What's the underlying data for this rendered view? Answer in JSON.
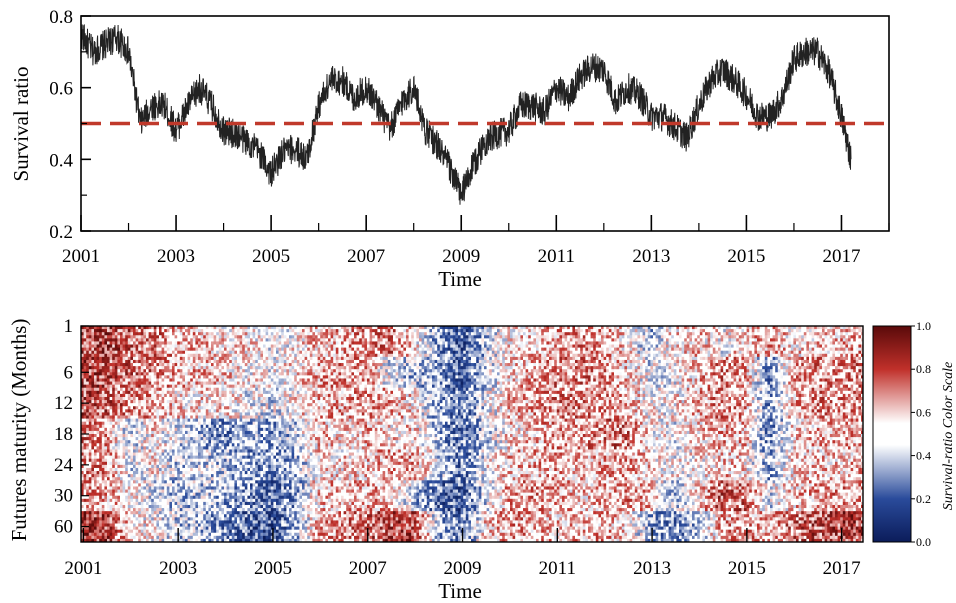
{
  "chart_data": [
    {
      "type": "line",
      "xlabel": "Time",
      "ylabel": "Survival ratio",
      "xlim": [
        2001.0,
        2018.0
      ],
      "ylim": [
        0.2,
        0.8
      ],
      "x_ticks": [
        2001,
        2003,
        2005,
        2007,
        2009,
        2011,
        2013,
        2015,
        2017
      ],
      "y_ticks": [
        0.2,
        0.4,
        0.6,
        0.8
      ],
      "y_tick_labels": [
        "0.2",
        "0.4",
        "0.6",
        "0.8"
      ],
      "reference_line": {
        "y": 0.5,
        "style": "dashed",
        "color": "#c0392b"
      },
      "series": [
        {
          "color": "#222222",
          "x": [
            2001.0,
            2001.25,
            2001.5,
            2001.75,
            2002.0,
            2002.25,
            2002.5,
            2002.75,
            2003.0,
            2003.25,
            2003.5,
            2003.75,
            2004.0,
            2004.25,
            2004.5,
            2004.75,
            2005.0,
            2005.25,
            2005.5,
            2005.75,
            2006.0,
            2006.25,
            2006.5,
            2006.75,
            2007.0,
            2007.25,
            2007.5,
            2007.75,
            2008.0,
            2008.25,
            2008.5,
            2008.75,
            2009.0,
            2009.25,
            2009.5,
            2009.75,
            2010.0,
            2010.25,
            2010.5,
            2010.75,
            2011.0,
            2011.25,
            2011.5,
            2011.75,
            2012.0,
            2012.25,
            2012.5,
            2012.75,
            2013.0,
            2013.25,
            2013.5,
            2013.75,
            2014.0,
            2014.25,
            2014.5,
            2014.75,
            2015.0,
            2015.25,
            2015.5,
            2015.75,
            2016.0,
            2016.25,
            2016.5,
            2016.75,
            2017.0,
            2017.2
          ],
          "y": [
            0.75,
            0.7,
            0.72,
            0.74,
            0.7,
            0.5,
            0.55,
            0.55,
            0.48,
            0.55,
            0.6,
            0.55,
            0.48,
            0.47,
            0.45,
            0.42,
            0.36,
            0.42,
            0.43,
            0.4,
            0.55,
            0.62,
            0.62,
            0.57,
            0.6,
            0.55,
            0.48,
            0.56,
            0.6,
            0.48,
            0.44,
            0.38,
            0.3,
            0.38,
            0.45,
            0.47,
            0.48,
            0.55,
            0.55,
            0.53,
            0.6,
            0.57,
            0.63,
            0.66,
            0.65,
            0.56,
            0.6,
            0.58,
            0.52,
            0.52,
            0.49,
            0.46,
            0.55,
            0.62,
            0.65,
            0.62,
            0.58,
            0.52,
            0.52,
            0.57,
            0.68,
            0.7,
            0.7,
            0.64,
            0.52,
            0.4
          ]
        }
      ]
    },
    {
      "type": "heatmap",
      "xlabel": "Time",
      "ylabel": "Futures maturity (Months)",
      "x_ticks": [
        2001,
        2003,
        2005,
        2007,
        2009,
        2011,
        2013,
        2015,
        2017
      ],
      "y_tick_labels": [
        "1",
        "6",
        "12",
        "18",
        "24",
        "30",
        "60"
      ],
      "colorbar": {
        "title": "Survival-ratio Color Scale",
        "ticks": [
          "0.0",
          "0.2",
          "0.4",
          "0.6",
          "0.8",
          "1.0"
        ],
        "range": [
          0.0,
          1.0
        ],
        "colors": [
          "#0b1c5a",
          "#2a4b9b",
          "#ffffff",
          "#c0302a",
          "#5a0a0a"
        ]
      },
      "column_years": [
        2001.0,
        2001.5,
        2002.0,
        2002.5,
        2003.0,
        2003.5,
        2004.0,
        2004.5,
        2005.0,
        2005.5,
        2006.0,
        2006.5,
        2007.0,
        2007.5,
        2008.0,
        2008.5,
        2009.0,
        2009.5,
        2010.0,
        2010.5,
        2011.0,
        2011.5,
        2012.0,
        2012.5,
        2013.0,
        2013.5,
        2014.0,
        2014.5,
        2015.0,
        2015.5,
        2016.0,
        2016.5,
        2017.0,
        2017.5
      ],
      "values": [
        [
          0.78,
          0.8,
          0.75,
          0.7,
          0.62,
          0.6,
          0.55,
          0.55,
          0.48,
          0.52,
          0.6,
          0.62,
          0.65,
          0.7,
          0.55,
          0.35,
          0.2,
          0.4,
          0.55,
          0.58,
          0.62,
          0.65,
          0.62,
          0.55,
          0.4,
          0.55,
          0.58,
          0.5,
          0.6,
          0.62,
          0.55,
          0.58,
          0.6,
          0.62
        ],
        [
          0.8,
          0.78,
          0.72,
          0.68,
          0.62,
          0.6,
          0.58,
          0.52,
          0.5,
          0.55,
          0.62,
          0.65,
          0.65,
          0.45,
          0.4,
          0.35,
          0.22,
          0.42,
          0.55,
          0.62,
          0.68,
          0.7,
          0.65,
          0.58,
          0.45,
          0.5,
          0.6,
          0.68,
          0.62,
          0.3,
          0.62,
          0.66,
          0.65,
          0.7
        ],
        [
          0.78,
          0.75,
          0.7,
          0.62,
          0.55,
          0.55,
          0.55,
          0.48,
          0.45,
          0.52,
          0.6,
          0.62,
          0.65,
          0.62,
          0.55,
          0.38,
          0.25,
          0.45,
          0.58,
          0.62,
          0.68,
          0.68,
          0.65,
          0.6,
          0.5,
          0.52,
          0.6,
          0.68,
          0.62,
          0.32,
          0.6,
          0.68,
          0.66,
          0.66
        ],
        [
          0.7,
          0.62,
          0.4,
          0.55,
          0.45,
          0.4,
          0.3,
          0.4,
          0.35,
          0.42,
          0.58,
          0.55,
          0.6,
          0.55,
          0.58,
          0.4,
          0.25,
          0.42,
          0.55,
          0.58,
          0.65,
          0.62,
          0.7,
          0.72,
          0.52,
          0.48,
          0.55,
          0.62,
          0.58,
          0.3,
          0.55,
          0.6,
          0.62,
          0.6
        ],
        [
          0.68,
          0.65,
          0.45,
          0.52,
          0.42,
          0.45,
          0.4,
          0.35,
          0.3,
          0.38,
          0.55,
          0.55,
          0.58,
          0.62,
          0.62,
          0.45,
          0.25,
          0.48,
          0.58,
          0.6,
          0.62,
          0.58,
          0.62,
          0.62,
          0.55,
          0.5,
          0.52,
          0.6,
          0.55,
          0.35,
          0.55,
          0.58,
          0.58,
          0.6
        ],
        [
          0.65,
          0.62,
          0.55,
          0.45,
          0.4,
          0.42,
          0.38,
          0.3,
          0.25,
          0.35,
          0.58,
          0.6,
          0.62,
          0.6,
          0.4,
          0.25,
          0.22,
          0.45,
          0.62,
          0.65,
          0.62,
          0.58,
          0.6,
          0.65,
          0.58,
          0.4,
          0.55,
          0.75,
          0.72,
          0.45,
          0.58,
          0.62,
          0.65,
          0.62
        ],
        [
          0.85,
          0.82,
          0.55,
          0.5,
          0.42,
          0.4,
          0.3,
          0.22,
          0.18,
          0.35,
          0.62,
          0.65,
          0.72,
          0.8,
          0.8,
          0.4,
          0.25,
          0.55,
          0.65,
          0.62,
          0.58,
          0.6,
          0.62,
          0.55,
          0.38,
          0.3,
          0.4,
          0.62,
          0.65,
          0.6,
          0.72,
          0.78,
          0.8,
          0.8
        ]
      ]
    }
  ]
}
